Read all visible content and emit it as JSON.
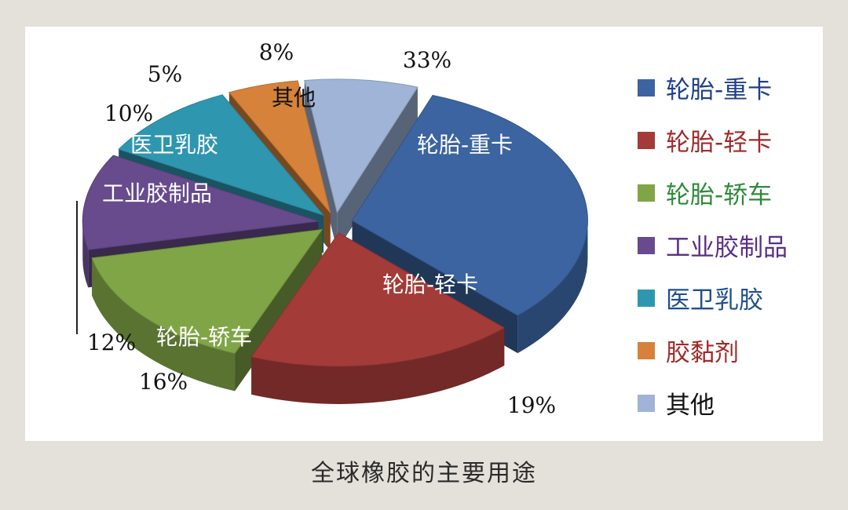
{
  "caption": "全球橡胶的主要用途",
  "chart_data": {
    "type": "pie",
    "title": "",
    "slices": [
      {
        "label": "轮胎-重卡",
        "value": 33,
        "value_label": "33%",
        "color": "#3b64a0",
        "label_color": "#1f3f8a"
      },
      {
        "label": "轮胎-轻卡",
        "value": 19,
        "value_label": "19%",
        "color": "#a33b38",
        "label_color": "#a12a2a"
      },
      {
        "label": "轮胎-轿车",
        "value": 16,
        "value_label": "16%",
        "color": "#80a546",
        "label_color": "#2f8a3a"
      },
      {
        "label": "工业胶制品",
        "value": 12,
        "value_label": "12%",
        "color": "#674b8c",
        "label_color": "#5a2f86"
      },
      {
        "label": "医卫乳胶",
        "value": 10,
        "value_label": "10%",
        "color": "#2f96b0",
        "label_color": "#1f4f8a"
      },
      {
        "label": "胶黏剂",
        "value": 5,
        "value_label": "5%",
        "color": "#d6823a",
        "label_color": "#a12a2a"
      },
      {
        "label": "其他",
        "value": 8,
        "value_label": "8%",
        "color": "#9fb4d6",
        "label_color": "#111111"
      }
    ],
    "legend_position": "right",
    "exploded": true,
    "style": "3d"
  }
}
